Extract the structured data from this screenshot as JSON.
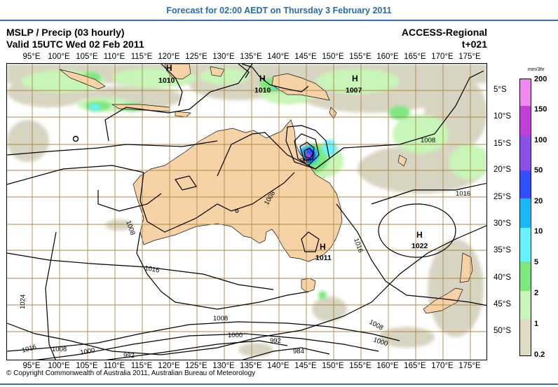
{
  "header": {
    "forecast_heading": "Forecast for 02:00 AEDT on Thursday 3 February 2011",
    "product_title": "MSLP / Precip (03 hourly)",
    "valid_time": "Valid 15UTC Wed 02 Feb 2011",
    "model_name": "ACCESS-Regional",
    "forecast_step": "t+021"
  },
  "longitudes": [
    "95°E",
    "100°E",
    "105°E",
    "110°E",
    "115°E",
    "120°E",
    "125°E",
    "130°E",
    "135°E",
    "140°E",
    "145°E",
    "150°E",
    "155°E",
    "160°E",
    "165°E",
    "170°E",
    "175°E"
  ],
  "latitudes": [
    "5°S",
    "10°S",
    "15°S",
    "20°S",
    "25°S",
    "30°S",
    "35°S",
    "40°S",
    "45°S",
    "50°S"
  ],
  "pressure_labels": [
    "1010",
    "1010",
    "1007",
    "1008",
    "1016",
    "1008",
    "1008",
    "1016",
    "1016",
    "1024",
    "1008",
    "1000",
    "1016",
    "1008",
    "1000",
    "992",
    "992",
    "984",
    "1000",
    "1008",
    "980"
  ],
  "pressure_centres": [
    {
      "symbol": "H",
      "value": "1010"
    },
    {
      "symbol": "H",
      "value": "1010"
    },
    {
      "symbol": "H",
      "value": "1007"
    },
    {
      "symbol": "H",
      "value": "1011"
    },
    {
      "symbol": "H",
      "value": "1022"
    }
  ],
  "legend": {
    "unit": "mm/3hr",
    "labels": [
      "200",
      "150",
      "100",
      "50",
      "20",
      "10",
      "5",
      "2",
      "1",
      "0.2"
    ],
    "colors": [
      "#f088f0",
      "#c040d8",
      "#8a50e8",
      "#3050ff",
      "#19b8f8",
      "#66f2ff",
      "#7ee87e",
      "#c8f5b8",
      "#dedbc5",
      "#d4d0bc"
    ]
  },
  "colors": {
    "land": "#f7d2a6",
    "grid": "#a88a47",
    "heading": "#2a6aa8"
  },
  "copyright": "© Copyright Commonwealth of Australia 2011, Australian Bureau of Meteorology"
}
